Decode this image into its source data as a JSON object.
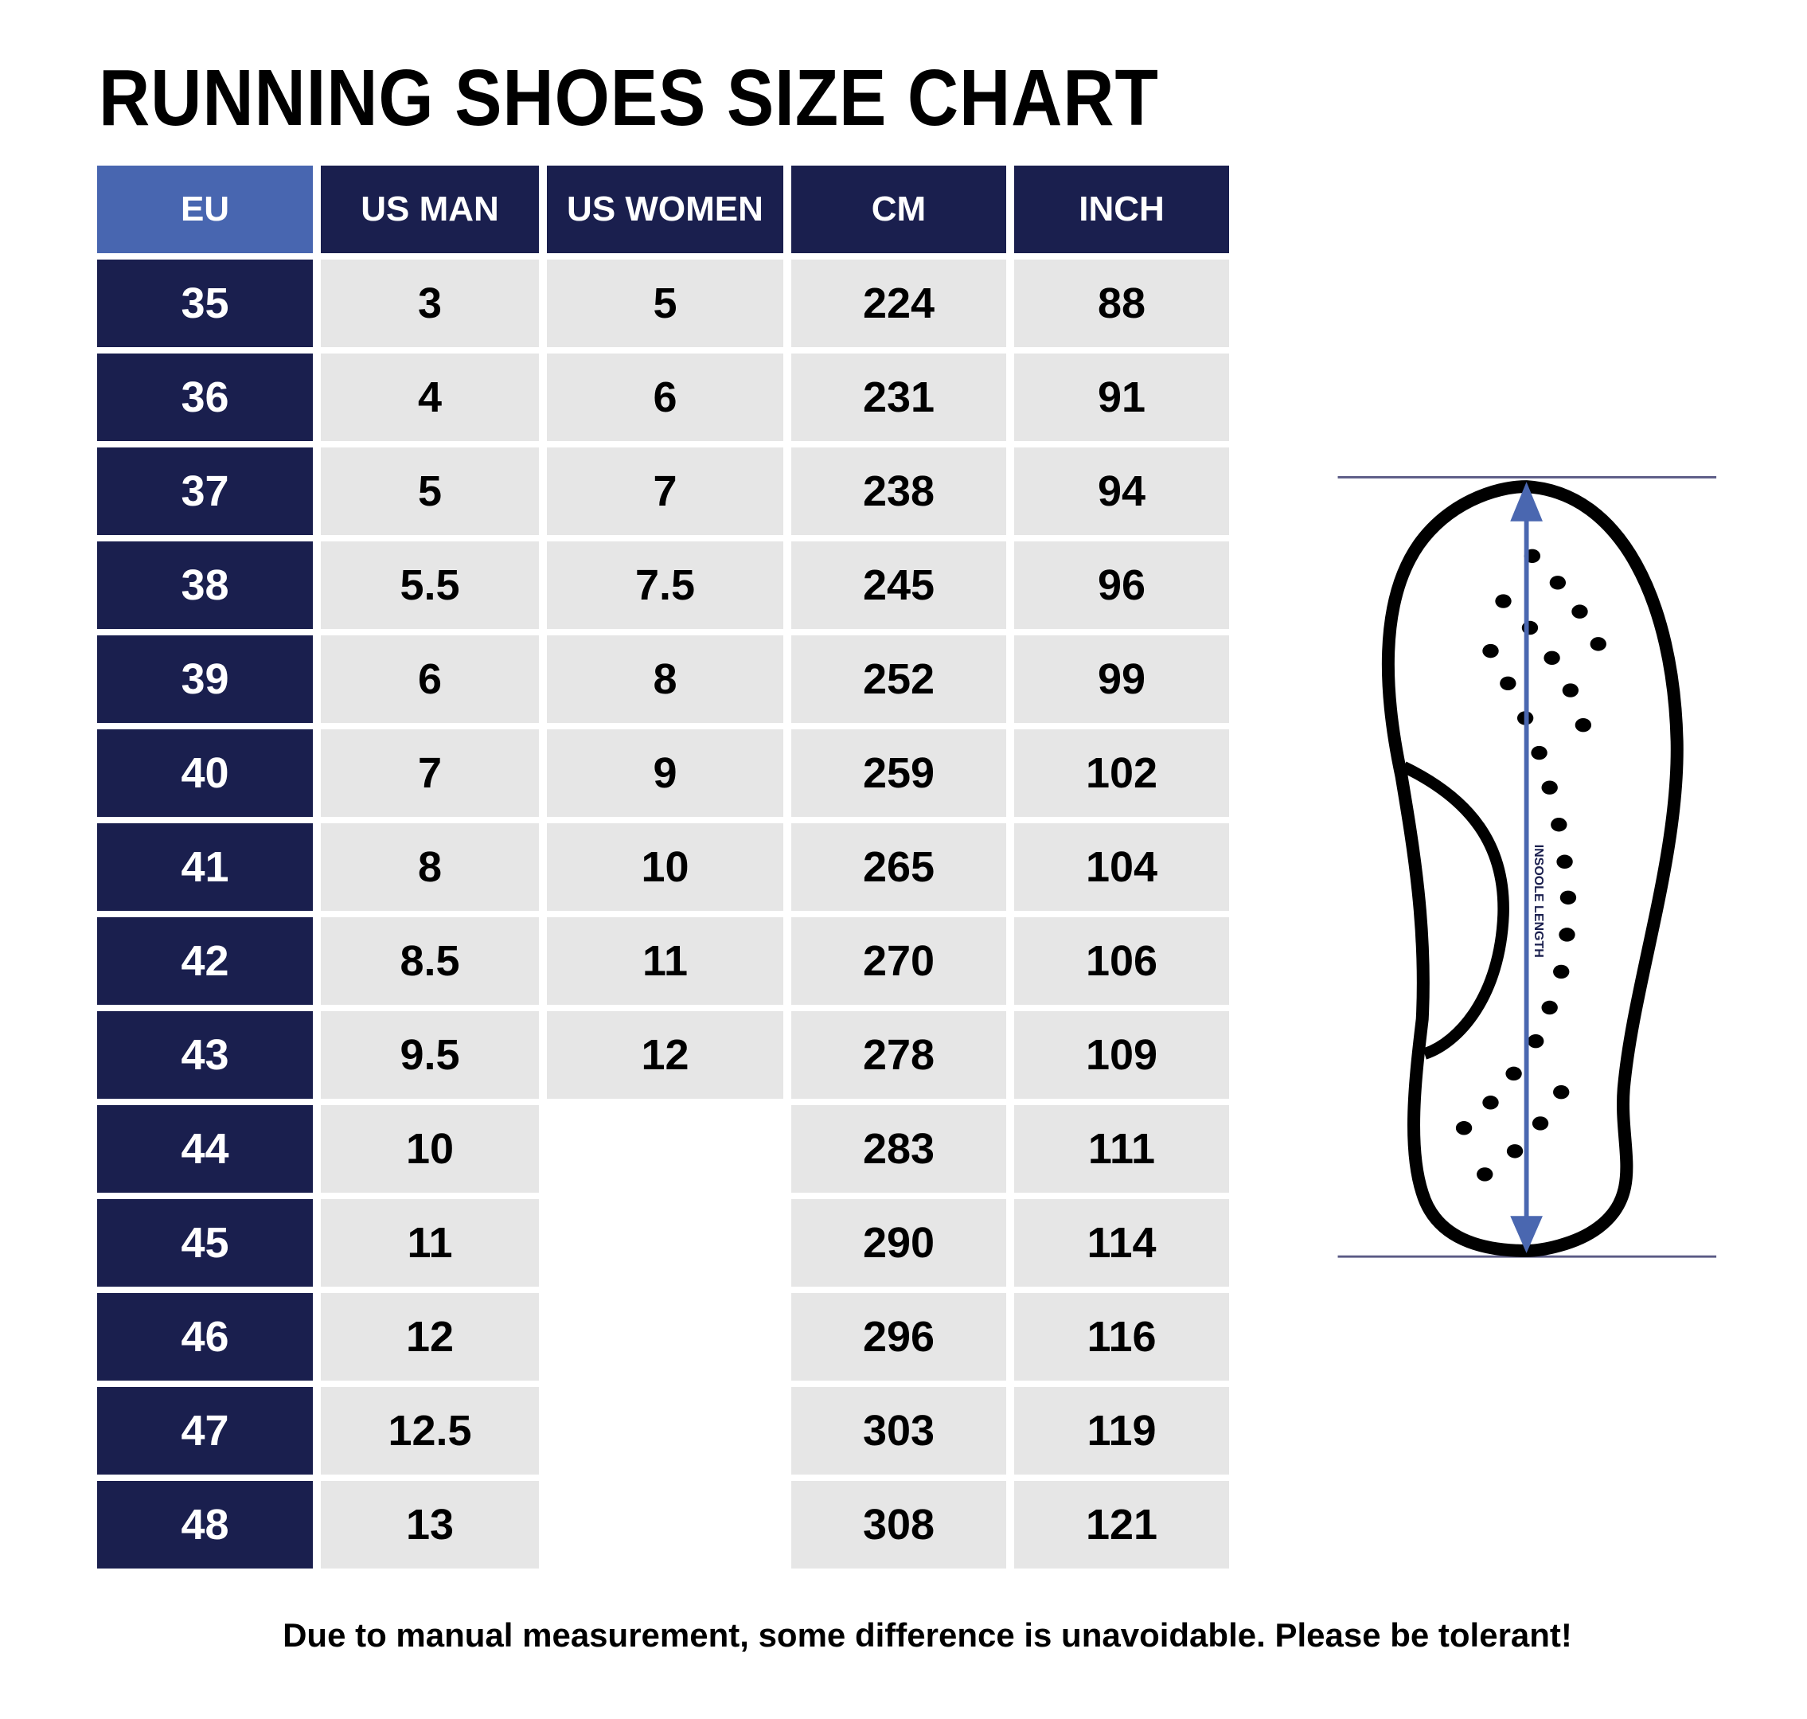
{
  "title": "RUNNING SHOES SIZE CHART",
  "colors": {
    "header_accent": "#4866b0",
    "navy": "#1a1f4e",
    "cell_grey": "#e6e6e6",
    "arrow_blue": "#4a67b0"
  },
  "table": {
    "headers": [
      "EU",
      "US MAN",
      "US WOMEN",
      "CM",
      "INCH"
    ],
    "rows": [
      [
        "35",
        "3",
        "5",
        "224",
        "88"
      ],
      [
        "36",
        "4",
        "6",
        "231",
        "91"
      ],
      [
        "37",
        "5",
        "7",
        "238",
        "94"
      ],
      [
        "38",
        "5.5",
        "7.5",
        "245",
        "96"
      ],
      [
        "39",
        "6",
        "8",
        "252",
        "99"
      ],
      [
        "40",
        "7",
        "9",
        "259",
        "102"
      ],
      [
        "41",
        "8",
        "10",
        "265",
        "104"
      ],
      [
        "42",
        "8.5",
        "11",
        "270",
        "106"
      ],
      [
        "43",
        "9.5",
        "12",
        "278",
        "109"
      ],
      [
        "44",
        "10",
        null,
        "283",
        "111"
      ],
      [
        "45",
        "11",
        null,
        "290",
        "114"
      ],
      [
        "46",
        "12",
        null,
        "296",
        "116"
      ],
      [
        "47",
        "12.5",
        null,
        "303",
        "119"
      ],
      [
        "48",
        "13",
        null,
        "308",
        "121"
      ]
    ]
  },
  "diagram": {
    "arrow_label": "INSOOLE LENGTH",
    "icon": "shoe-insole-icon"
  },
  "footer": "Due to manual measurement, some difference is unavoidable. Please be tolerant!"
}
